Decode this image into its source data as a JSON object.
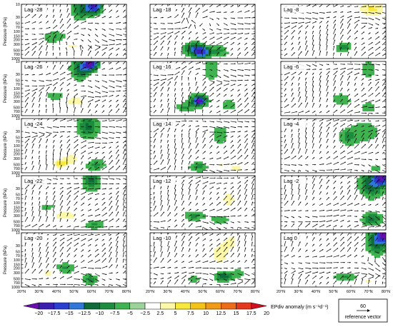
{
  "chart_data": {
    "type": "heatmap",
    "panel_labels": [
      [
        "Lag -28",
        "Lag -18",
        "Lag -8"
      ],
      [
        "Lag -26",
        "Lag -16",
        "Lag -6"
      ],
      [
        "Lag -24",
        "Lag -14",
        "Lag -4"
      ],
      [
        "Lag -22",
        "Lag -12",
        "Lag -2"
      ],
      [
        "Lag -20",
        "Lag -10",
        "Lag 0"
      ]
    ],
    "ylabel": "Pressure (hPa)",
    "y_ticks": [
      10,
      30,
      50,
      70,
      100,
      150,
      200,
      300,
      500,
      700,
      1000
    ],
    "y_range": [
      1000,
      10
    ],
    "y_scale": "log",
    "x_ticks": [
      "20°N",
      "30°N",
      "40°N",
      "50°N",
      "60°N",
      "70°N",
      "80°N"
    ],
    "x_range": [
      20,
      80
    ],
    "colorbar": {
      "label": "EPdiv anomaly (m s⁻¹d⁻¹)",
      "ticks": [
        "−20",
        "−17.5",
        "−15",
        "−12.5",
        "−10",
        "−7.5",
        "−5",
        "−2.5",
        "2.5",
        "5",
        "7.5",
        "10",
        "12.5",
        "15",
        "17.5",
        "20"
      ],
      "colors": [
        "#6a0dad",
        "#3b1fb0",
        "#2a3fd0",
        "#2f78d8",
        "#0f6b3a",
        "#1d8c3f",
        "#3fb34f",
        "#9bd39b",
        "#ffffff",
        "#fdf7a8",
        "#f8e83c",
        "#f4c318",
        "#f09a18",
        "#ec6c1a",
        "#e5391e",
        "#cf1020"
      ]
    },
    "reference_vector": {
      "value": "60",
      "label": "reference vector"
    },
    "anomaly_blobs": [
      [
        [
          [
            55,
            15,
            1.5,
            0.45,
            -9
          ],
          [
            62,
            12,
            1.0,
            0.3,
            -14
          ],
          [
            40,
            180,
            2.0,
            0.25,
            -6
          ],
          [
            48,
            320,
            2.5,
            0.25,
            6
          ],
          [
            60,
            60,
            1.4,
            0.45,
            4
          ]
        ],
        [
          [
            48,
            12,
            3.0,
            0.2,
            5
          ],
          [
            45,
            450,
            1.5,
            0.25,
            -10
          ],
          [
            50,
            600,
            1.2,
            0.2,
            -12
          ],
          [
            60,
            500,
            1.4,
            0.25,
            -6
          ],
          [
            70,
            350,
            2.0,
            0.2,
            4
          ]
        ],
        [
          [
            72,
            15,
            2.5,
            0.4,
            8
          ],
          [
            64,
            60,
            1.5,
            0.4,
            -3
          ],
          [
            55,
            350,
            1.5,
            0.2,
            -8
          ],
          [
            48,
            300,
            1.8,
            0.2,
            5
          ],
          [
            65,
            150,
            1.5,
            0.3,
            4
          ]
        ]
      ],
      [
        [
          [
            55,
            18,
            1.6,
            0.45,
            -10
          ],
          [
            60,
            12,
            1.0,
            0.25,
            -14
          ],
          [
            50,
            300,
            2.5,
            0.25,
            7
          ],
          [
            40,
            200,
            1.5,
            0.2,
            -6
          ],
          [
            62,
            50,
            1.5,
            0.4,
            4
          ]
        ],
        [
          [
            55,
            20,
            1.2,
            0.4,
            -5
          ],
          [
            48,
            250,
            1.4,
            0.25,
            -7
          ],
          [
            48,
            300,
            0.9,
            0.15,
            -12
          ],
          [
            40,
            500,
            1.5,
            0.2,
            -5
          ],
          [
            65,
            400,
            1.3,
            0.25,
            -4
          ]
        ],
        [
          [
            70,
            20,
            1.3,
            0.4,
            -4
          ],
          [
            55,
            250,
            1.5,
            0.25,
            -5
          ],
          [
            70,
            500,
            1.2,
            0.25,
            -4
          ],
          [
            60,
            100,
            1.0,
            0.3,
            3
          ]
        ]
      ],
      [
        [
          [
            58,
            20,
            1.6,
            0.45,
            -8
          ],
          [
            45,
            300,
            2.5,
            0.25,
            8
          ],
          [
            38,
            250,
            1.8,
            0.2,
            -6
          ],
          [
            62,
            500,
            1.5,
            0.25,
            -6
          ],
          [
            42,
            500,
            1.2,
            0.15,
            6
          ]
        ],
        [
          [
            60,
            40,
            1.4,
            0.45,
            -4
          ],
          [
            48,
            600,
            1.5,
            0.2,
            -6
          ],
          [
            60,
            500,
            1.3,
            0.2,
            5
          ],
          [
            70,
            700,
            1.5,
            0.2,
            6
          ]
        ],
        [
          [
            68,
            30,
            2.5,
            0.5,
            -4
          ],
          [
            58,
            50,
            1.2,
            0.3,
            -5
          ],
          [
            74,
            700,
            1.2,
            0.15,
            -4
          ]
        ]
      ],
      [
        [
          [
            60,
            15,
            1.3,
            0.4,
            -8
          ],
          [
            45,
            300,
            2.5,
            0.25,
            7
          ],
          [
            35,
            150,
            1.4,
            0.2,
            -4
          ],
          [
            62,
            600,
            1.5,
            0.2,
            -6
          ],
          [
            65,
            200,
            1.2,
            0.3,
            4
          ]
        ],
        [
          [
            65,
            70,
            1.5,
            0.5,
            6
          ],
          [
            45,
            300,
            1.5,
            0.2,
            -6
          ],
          [
            60,
            400,
            1.5,
            0.2,
            -5
          ],
          [
            45,
            800,
            1.2,
            0.15,
            5
          ]
        ],
        [
          [
            72,
            20,
            1.8,
            0.5,
            -10
          ],
          [
            78,
            12,
            1.0,
            0.25,
            -15
          ],
          [
            60,
            150,
            1.6,
            0.3,
            4
          ],
          [
            72,
            400,
            1.5,
            0.25,
            -8
          ],
          [
            50,
            300,
            1.5,
            0.2,
            4
          ]
        ]
      ],
      [
        [
          [
            55,
            15,
            1.5,
            0.3,
            5
          ],
          [
            45,
            200,
            1.5,
            0.2,
            -6
          ],
          [
            35,
            300,
            1.5,
            0.2,
            6
          ],
          [
            60,
            500,
            1.3,
            0.2,
            -7
          ],
          [
            65,
            250,
            1.2,
            0.3,
            4
          ]
        ],
        [
          [
            60,
            60,
            1.5,
            0.5,
            7
          ],
          [
            67,
            20,
            1.2,
            0.35,
            5
          ],
          [
            62,
            400,
            1.2,
            0.2,
            -10
          ],
          [
            70,
            300,
            1.0,
            0.2,
            -4
          ],
          [
            45,
            500,
            1.0,
            0.15,
            -4
          ]
        ],
        [
          [
            75,
            20,
            1.5,
            0.5,
            -10
          ],
          [
            80,
            12,
            1.0,
            0.25,
            -17
          ],
          [
            62,
            200,
            1.8,
            0.25,
            5
          ],
          [
            58,
            400,
            2.0,
            0.2,
            -6
          ],
          [
            70,
            600,
            1.5,
            0.2,
            6
          ]
        ]
      ]
    ],
    "vector_rotation": [
      [
        [
          50,
          250,
          1.5
        ],
        [
          55,
          70,
          1.0
        ]
      ],
      [
        [
          50,
          30,
          1.0
        ],
        [
          48,
          500,
          1.2
        ]
      ],
      [
        [
          65,
          40,
          1.2
        ],
        [
          62,
          400,
          1.0
        ]
      ]
    ]
  }
}
